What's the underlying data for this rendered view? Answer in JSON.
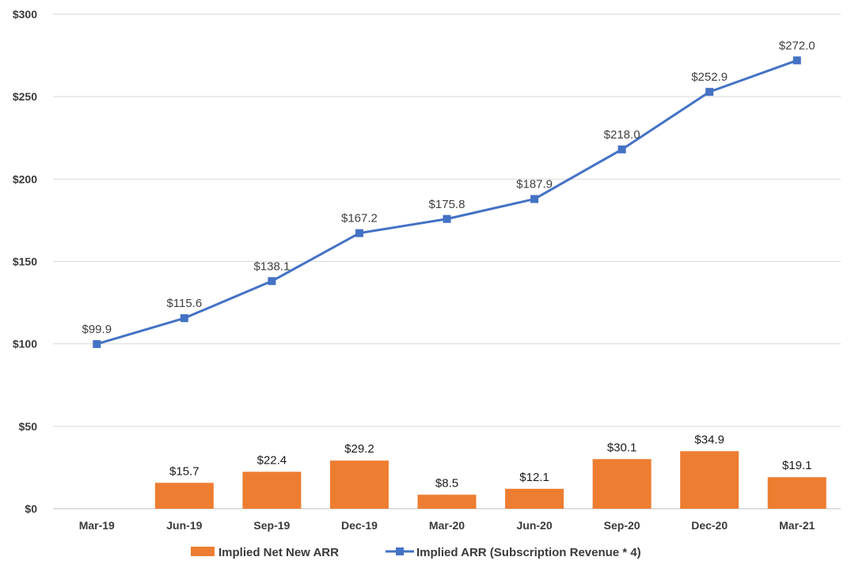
{
  "chart_data": {
    "type": "bar+line",
    "categories": [
      "Mar-19",
      "Jun-19",
      "Sep-19",
      "Dec-19",
      "Mar-20",
      "Jun-20",
      "Sep-20",
      "Dec-20",
      "Mar-21"
    ],
    "series": [
      {
        "name": "Implied Net New ARR",
        "type": "bar",
        "color": "#ED7D31",
        "values": [
          null,
          15.7,
          22.4,
          29.2,
          8.5,
          12.1,
          30.1,
          34.9,
          19.1
        ],
        "labels": [
          "",
          "$15.7",
          "$22.4",
          "$29.2",
          "$8.5",
          "$12.1",
          "$30.1",
          "$34.9",
          "$19.1"
        ]
      },
      {
        "name": "Implied ARR (Subscription Revenue * 4)",
        "type": "line",
        "marker": "square",
        "color": "#4472C4",
        "values": [
          99.9,
          115.6,
          138.1,
          167.2,
          175.8,
          187.9,
          218.0,
          252.9,
          272.0
        ],
        "labels": [
          "$99.9",
          "$115.6",
          "$138.1",
          "$167.2",
          "$175.8",
          "$187.9",
          "$218.0",
          "$252.9",
          "$272.0"
        ]
      }
    ],
    "yticks": [
      "$0",
      "$50",
      "$100",
      "$150",
      "$200",
      "$250",
      "$300"
    ],
    "ylim": [
      0,
      300
    ],
    "grid": "horizontal",
    "legend_position": "bottom",
    "title": "",
    "xlabel": "",
    "ylabel": ""
  }
}
